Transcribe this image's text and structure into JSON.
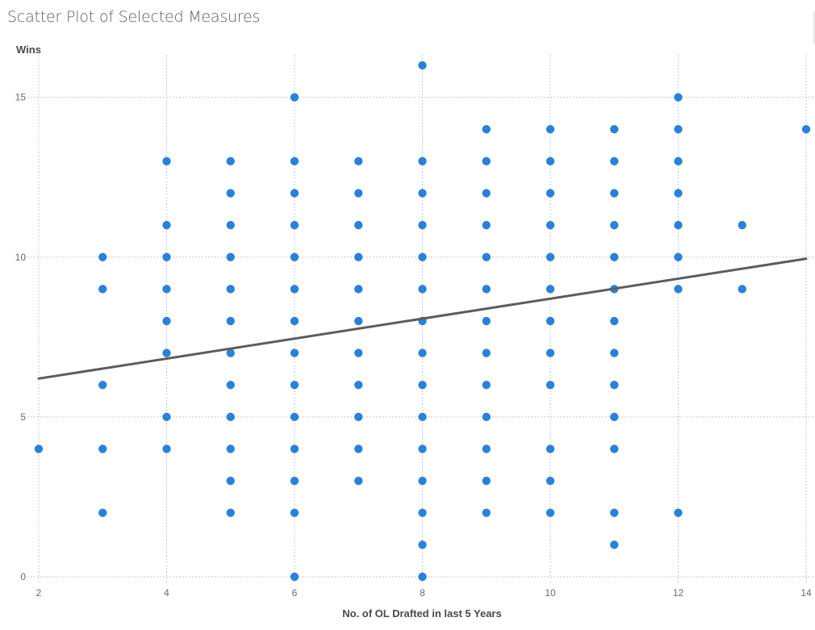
{
  "header": {
    "title": "Scatter Plot of Selected Measures"
  },
  "chart_data": {
    "type": "scatter",
    "xlabel": "No. of OL Drafted in last 5 Years",
    "ylabel": "Wins",
    "xlim": [
      2,
      14
    ],
    "ylim": [
      0,
      16
    ],
    "xticks": [
      2,
      4,
      6,
      8,
      10,
      12,
      14
    ],
    "yticks": [
      0,
      5,
      10,
      15
    ],
    "grid": true,
    "point_color": "#2b82d4",
    "trend_color": "#5c5c5c",
    "trend_line": {
      "x": [
        2,
        14
      ],
      "y": [
        6.2,
        9.95
      ]
    },
    "points": [
      [
        2,
        4
      ],
      [
        3,
        2
      ],
      [
        3,
        4
      ],
      [
        3,
        6
      ],
      [
        3,
        9
      ],
      [
        3,
        10
      ],
      [
        4,
        4
      ],
      [
        4,
        5
      ],
      [
        4,
        7
      ],
      [
        4,
        8
      ],
      [
        4,
        9
      ],
      [
        4,
        10
      ],
      [
        4,
        11
      ],
      [
        4,
        13
      ],
      [
        5,
        2
      ],
      [
        5,
        3
      ],
      [
        5,
        4
      ],
      [
        5,
        5
      ],
      [
        5,
        6
      ],
      [
        5,
        7
      ],
      [
        5,
        8
      ],
      [
        5,
        9
      ],
      [
        5,
        10
      ],
      [
        5,
        11
      ],
      [
        5,
        12
      ],
      [
        5,
        13
      ],
      [
        6,
        0
      ],
      [
        6,
        2
      ],
      [
        6,
        3
      ],
      [
        6,
        4
      ],
      [
        6,
        5
      ],
      [
        6,
        6
      ],
      [
        6,
        7
      ],
      [
        6,
        8
      ],
      [
        6,
        9
      ],
      [
        6,
        10
      ],
      [
        6,
        11
      ],
      [
        6,
        12
      ],
      [
        6,
        13
      ],
      [
        6,
        15
      ],
      [
        7,
        3
      ],
      [
        7,
        4
      ],
      [
        7,
        5
      ],
      [
        7,
        6
      ],
      [
        7,
        7
      ],
      [
        7,
        8
      ],
      [
        7,
        9
      ],
      [
        7,
        10
      ],
      [
        7,
        11
      ],
      [
        7,
        12
      ],
      [
        7,
        13
      ],
      [
        8,
        0
      ],
      [
        8,
        1
      ],
      [
        8,
        2
      ],
      [
        8,
        3
      ],
      [
        8,
        4
      ],
      [
        8,
        5
      ],
      [
        8,
        6
      ],
      [
        8,
        7
      ],
      [
        8,
        8
      ],
      [
        8,
        9
      ],
      [
        8,
        10
      ],
      [
        8,
        11
      ],
      [
        8,
        12
      ],
      [
        8,
        13
      ],
      [
        8,
        16
      ],
      [
        9,
        2
      ],
      [
        9,
        3
      ],
      [
        9,
        4
      ],
      [
        9,
        5
      ],
      [
        9,
        6
      ],
      [
        9,
        7
      ],
      [
        9,
        8
      ],
      [
        9,
        9
      ],
      [
        9,
        10
      ],
      [
        9,
        11
      ],
      [
        9,
        12
      ],
      [
        9,
        13
      ],
      [
        9,
        14
      ],
      [
        10,
        2
      ],
      [
        10,
        3
      ],
      [
        10,
        4
      ],
      [
        10,
        6
      ],
      [
        10,
        7
      ],
      [
        10,
        8
      ],
      [
        10,
        9
      ],
      [
        10,
        10
      ],
      [
        10,
        11
      ],
      [
        10,
        12
      ],
      [
        10,
        13
      ],
      [
        10,
        14
      ],
      [
        11,
        1
      ],
      [
        11,
        2
      ],
      [
        11,
        4
      ],
      [
        11,
        5
      ],
      [
        11,
        6
      ],
      [
        11,
        7
      ],
      [
        11,
        8
      ],
      [
        11,
        9
      ],
      [
        11,
        10
      ],
      [
        11,
        11
      ],
      [
        11,
        12
      ],
      [
        11,
        13
      ],
      [
        11,
        14
      ],
      [
        12,
        2
      ],
      [
        12,
        9
      ],
      [
        12,
        10
      ],
      [
        12,
        11
      ],
      [
        12,
        12
      ],
      [
        12,
        13
      ],
      [
        12,
        14
      ],
      [
        12,
        15
      ],
      [
        13,
        9
      ],
      [
        13,
        11
      ],
      [
        14,
        14
      ]
    ]
  }
}
